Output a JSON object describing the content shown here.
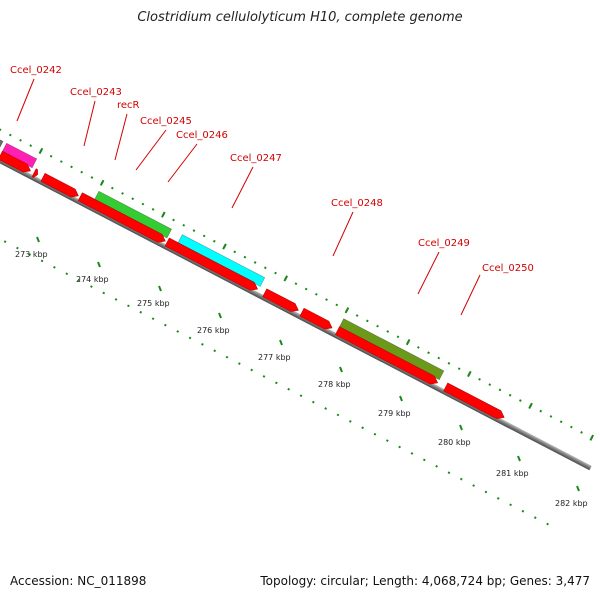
{
  "title": "Clostridium cellulolyticum H10, complete genome",
  "footer": {
    "accession": "Accession: NC_011898",
    "info": "Topology: circular; Length: 4,068,724 bp; Genes: 3,477"
  },
  "gene_labels": [
    "Ccel_0242",
    "Ccel_0243",
    "recR",
    "Ccel_0245",
    "Ccel_0246",
    "Ccel_0247",
    "Ccel_0248",
    "Ccel_0249",
    "Ccel_0250"
  ],
  "scale_labels": [
    "273 kbp",
    "274 kbp",
    "275 kbp",
    "276 kbp",
    "277 kbp",
    "278 kbp",
    "279 kbp",
    "280 kbp",
    "281 kbp",
    "282 kbp"
  ],
  "colors": {
    "cds": "#ff0000",
    "pink": "#ff1fb4",
    "gray": "#6b6b6b",
    "green": "#33cc33",
    "cyan": "#00ffff",
    "olive": "#6b9a1a",
    "label": "#d40000",
    "ticks": "#1a8a1a",
    "backbone": "#888888"
  }
}
